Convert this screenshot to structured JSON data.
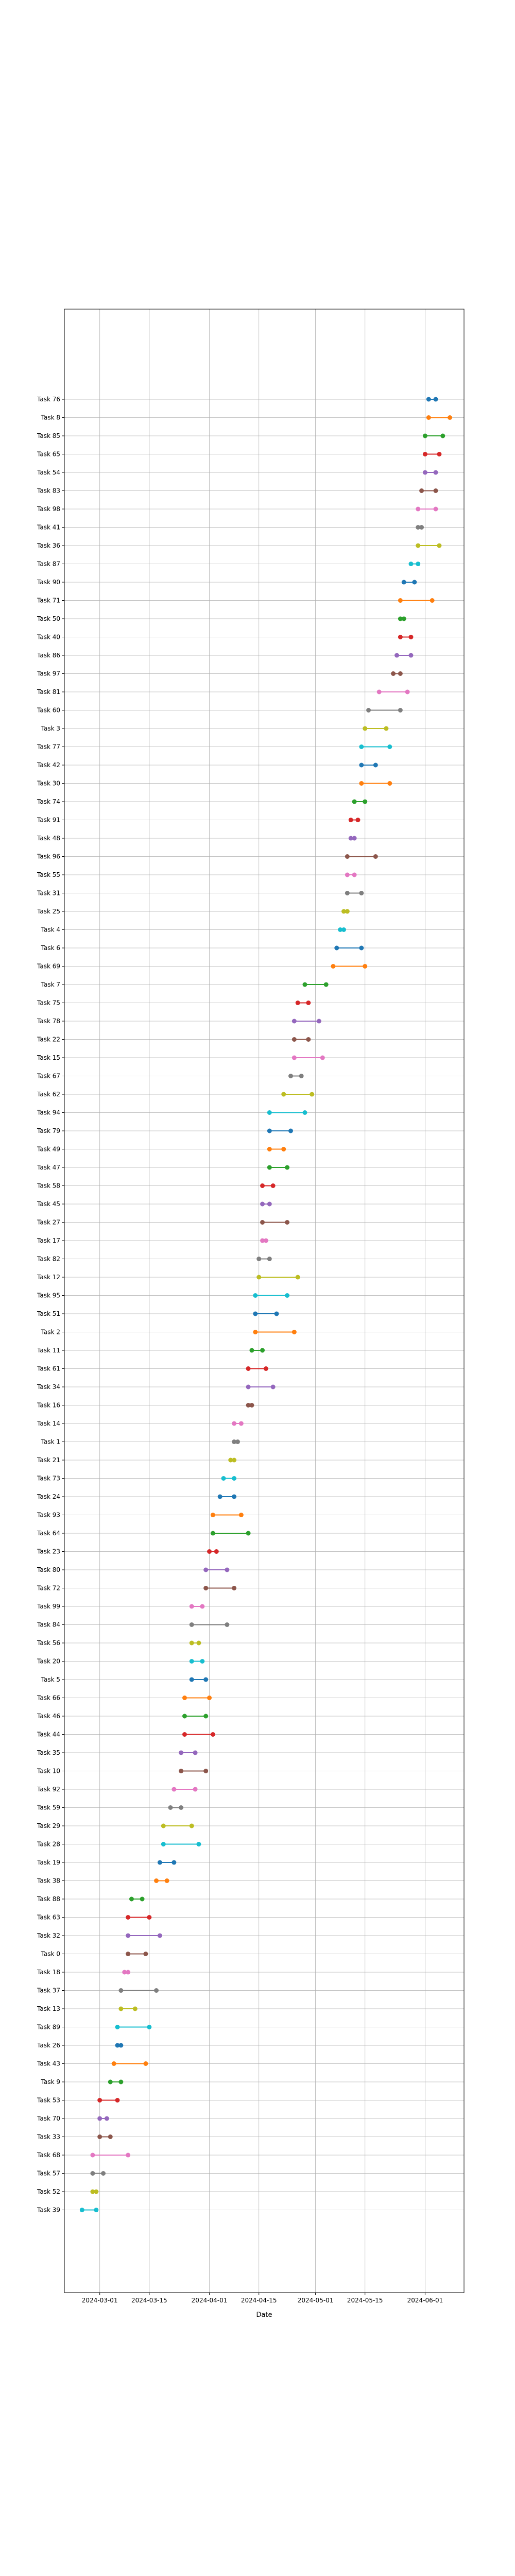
{
  "chart_data": {
    "type": "dumbbell",
    "title": "",
    "xlabel": "Date",
    "ylabel": "",
    "grid": true,
    "legend": "none",
    "xlim": [
      "2024-02-20",
      "2024-06-12"
    ],
    "x_ticks": [
      "2024-03-01",
      "2024-03-15",
      "2024-04-01",
      "2024-04-15",
      "2024-05-01",
      "2024-05-15",
      "2024-06-01"
    ],
    "colors": [
      "#1f77b4",
      "#ff7f0e",
      "#2ca02c",
      "#d62728",
      "#9467bd",
      "#8c564b",
      "#e377c2",
      "#7f7f7f",
      "#bcbd22",
      "#17becf"
    ],
    "tasks": [
      {
        "label": "Task 76",
        "start": "2024-06-02",
        "end": "2024-06-04"
      },
      {
        "label": "Task 8",
        "start": "2024-06-02",
        "end": "2024-06-08"
      },
      {
        "label": "Task 85",
        "start": "2024-06-01",
        "end": "2024-06-06"
      },
      {
        "label": "Task 65",
        "start": "2024-06-01",
        "end": "2024-06-05"
      },
      {
        "label": "Task 54",
        "start": "2024-06-01",
        "end": "2024-06-04"
      },
      {
        "label": "Task 83",
        "start": "2024-05-31",
        "end": "2024-06-04"
      },
      {
        "label": "Task 98",
        "start": "2024-05-30",
        "end": "2024-06-04"
      },
      {
        "label": "Task 41",
        "start": "2024-05-30",
        "end": "2024-05-31"
      },
      {
        "label": "Task 36",
        "start": "2024-05-30",
        "end": "2024-06-05"
      },
      {
        "label": "Task 87",
        "start": "2024-05-28",
        "end": "2024-05-30"
      },
      {
        "label": "Task 90",
        "start": "2024-05-26",
        "end": "2024-05-29"
      },
      {
        "label": "Task 71",
        "start": "2024-05-25",
        "end": "2024-06-03"
      },
      {
        "label": "Task 50",
        "start": "2024-05-25",
        "end": "2024-05-26"
      },
      {
        "label": "Task 40",
        "start": "2024-05-25",
        "end": "2024-05-28"
      },
      {
        "label": "Task 86",
        "start": "2024-05-24",
        "end": "2024-05-28"
      },
      {
        "label": "Task 97",
        "start": "2024-05-23",
        "end": "2024-05-25"
      },
      {
        "label": "Task 81",
        "start": "2024-05-19",
        "end": "2024-05-27"
      },
      {
        "label": "Task 60",
        "start": "2024-05-16",
        "end": "2024-05-25"
      },
      {
        "label": "Task 3",
        "start": "2024-05-15",
        "end": "2024-05-21"
      },
      {
        "label": "Task 77",
        "start": "2024-05-14",
        "end": "2024-05-22"
      },
      {
        "label": "Task 42",
        "start": "2024-05-14",
        "end": "2024-05-18"
      },
      {
        "label": "Task 30",
        "start": "2024-05-14",
        "end": "2024-05-22"
      },
      {
        "label": "Task 74",
        "start": "2024-05-12",
        "end": "2024-05-15"
      },
      {
        "label": "Task 91",
        "start": "2024-05-11",
        "end": "2024-05-13"
      },
      {
        "label": "Task 48",
        "start": "2024-05-11",
        "end": "2024-05-12"
      },
      {
        "label": "Task 96",
        "start": "2024-05-10",
        "end": "2024-05-18"
      },
      {
        "label": "Task 55",
        "start": "2024-05-10",
        "end": "2024-05-12"
      },
      {
        "label": "Task 31",
        "start": "2024-05-10",
        "end": "2024-05-14"
      },
      {
        "label": "Task 25",
        "start": "2024-05-09",
        "end": "2024-05-10"
      },
      {
        "label": "Task 4",
        "start": "2024-05-08",
        "end": "2024-05-09"
      },
      {
        "label": "Task 6",
        "start": "2024-05-07",
        "end": "2024-05-14"
      },
      {
        "label": "Task 69",
        "start": "2024-05-06",
        "end": "2024-05-15"
      },
      {
        "label": "Task 7",
        "start": "2024-04-28",
        "end": "2024-05-04"
      },
      {
        "label": "Task 75",
        "start": "2024-04-26",
        "end": "2024-04-29"
      },
      {
        "label": "Task 78",
        "start": "2024-04-25",
        "end": "2024-05-02"
      },
      {
        "label": "Task 22",
        "start": "2024-04-25",
        "end": "2024-04-29"
      },
      {
        "label": "Task 15",
        "start": "2024-04-25",
        "end": "2024-05-03"
      },
      {
        "label": "Task 67",
        "start": "2024-04-24",
        "end": "2024-04-27"
      },
      {
        "label": "Task 62",
        "start": "2024-04-22",
        "end": "2024-04-30"
      },
      {
        "label": "Task 94",
        "start": "2024-04-18",
        "end": "2024-04-28"
      },
      {
        "label": "Task 79",
        "start": "2024-04-18",
        "end": "2024-04-24"
      },
      {
        "label": "Task 49",
        "start": "2024-04-18",
        "end": "2024-04-22"
      },
      {
        "label": "Task 47",
        "start": "2024-04-18",
        "end": "2024-04-23"
      },
      {
        "label": "Task 58",
        "start": "2024-04-16",
        "end": "2024-04-19"
      },
      {
        "label": "Task 45",
        "start": "2024-04-16",
        "end": "2024-04-18"
      },
      {
        "label": "Task 27",
        "start": "2024-04-16",
        "end": "2024-04-23"
      },
      {
        "label": "Task 17",
        "start": "2024-04-16",
        "end": "2024-04-17"
      },
      {
        "label": "Task 82",
        "start": "2024-04-15",
        "end": "2024-04-18"
      },
      {
        "label": "Task 12",
        "start": "2024-04-15",
        "end": "2024-04-26"
      },
      {
        "label": "Task 95",
        "start": "2024-04-14",
        "end": "2024-04-23"
      },
      {
        "label": "Task 51",
        "start": "2024-04-14",
        "end": "2024-04-20"
      },
      {
        "label": "Task 2",
        "start": "2024-04-14",
        "end": "2024-04-25"
      },
      {
        "label": "Task 11",
        "start": "2024-04-13",
        "end": "2024-04-16"
      },
      {
        "label": "Task 61",
        "start": "2024-04-12",
        "end": "2024-04-17"
      },
      {
        "label": "Task 34",
        "start": "2024-04-12",
        "end": "2024-04-19"
      },
      {
        "label": "Task 16",
        "start": "2024-04-12",
        "end": "2024-04-13"
      },
      {
        "label": "Task 14",
        "start": "2024-04-08",
        "end": "2024-04-10"
      },
      {
        "label": "Task 1",
        "start": "2024-04-08",
        "end": "2024-04-09"
      },
      {
        "label": "Task 21",
        "start": "2024-04-07",
        "end": "2024-04-08"
      },
      {
        "label": "Task 73",
        "start": "2024-04-05",
        "end": "2024-04-08"
      },
      {
        "label": "Task 24",
        "start": "2024-04-04",
        "end": "2024-04-08"
      },
      {
        "label": "Task 93",
        "start": "2024-04-02",
        "end": "2024-04-10"
      },
      {
        "label": "Task 64",
        "start": "2024-04-02",
        "end": "2024-04-12"
      },
      {
        "label": "Task 23",
        "start": "2024-04-01",
        "end": "2024-04-03"
      },
      {
        "label": "Task 80",
        "start": "2024-03-31",
        "end": "2024-04-06"
      },
      {
        "label": "Task 72",
        "start": "2024-03-31",
        "end": "2024-04-08"
      },
      {
        "label": "Task 99",
        "start": "2024-03-27",
        "end": "2024-03-30"
      },
      {
        "label": "Task 84",
        "start": "2024-03-27",
        "end": "2024-04-06"
      },
      {
        "label": "Task 56",
        "start": "2024-03-27",
        "end": "2024-03-29"
      },
      {
        "label": "Task 20",
        "start": "2024-03-27",
        "end": "2024-03-30"
      },
      {
        "label": "Task 5",
        "start": "2024-03-27",
        "end": "2024-03-31"
      },
      {
        "label": "Task 66",
        "start": "2024-03-25",
        "end": "2024-04-01"
      },
      {
        "label": "Task 46",
        "start": "2024-03-25",
        "end": "2024-03-31"
      },
      {
        "label": "Task 44",
        "start": "2024-03-25",
        "end": "2024-04-02"
      },
      {
        "label": "Task 35",
        "start": "2024-03-24",
        "end": "2024-03-28"
      },
      {
        "label": "Task 10",
        "start": "2024-03-24",
        "end": "2024-03-31"
      },
      {
        "label": "Task 92",
        "start": "2024-03-22",
        "end": "2024-03-28"
      },
      {
        "label": "Task 59",
        "start": "2024-03-21",
        "end": "2024-03-24"
      },
      {
        "label": "Task 29",
        "start": "2024-03-19",
        "end": "2024-03-27"
      },
      {
        "label": "Task 28",
        "start": "2024-03-19",
        "end": "2024-03-29"
      },
      {
        "label": "Task 19",
        "start": "2024-03-18",
        "end": "2024-03-22"
      },
      {
        "label": "Task 38",
        "start": "2024-03-17",
        "end": "2024-03-20"
      },
      {
        "label": "Task 88",
        "start": "2024-03-10",
        "end": "2024-03-13"
      },
      {
        "label": "Task 63",
        "start": "2024-03-09",
        "end": "2024-03-15"
      },
      {
        "label": "Task 32",
        "start": "2024-03-09",
        "end": "2024-03-18"
      },
      {
        "label": "Task 0",
        "start": "2024-03-09",
        "end": "2024-03-14"
      },
      {
        "label": "Task 18",
        "start": "2024-03-08",
        "end": "2024-03-09"
      },
      {
        "label": "Task 37",
        "start": "2024-03-07",
        "end": "2024-03-17"
      },
      {
        "label": "Task 13",
        "start": "2024-03-07",
        "end": "2024-03-11"
      },
      {
        "label": "Task 89",
        "start": "2024-03-06",
        "end": "2024-03-15"
      },
      {
        "label": "Task 26",
        "start": "2024-03-06",
        "end": "2024-03-07"
      },
      {
        "label": "Task 43",
        "start": "2024-03-05",
        "end": "2024-03-14"
      },
      {
        "label": "Task 9",
        "start": "2024-03-04",
        "end": "2024-03-07"
      },
      {
        "label": "Task 53",
        "start": "2024-03-01",
        "end": "2024-03-06"
      },
      {
        "label": "Task 70",
        "start": "2024-03-01",
        "end": "2024-03-03"
      },
      {
        "label": "Task 33",
        "start": "2024-03-01",
        "end": "2024-03-04"
      },
      {
        "label": "Task 68",
        "start": "2024-02-28",
        "end": "2024-03-09"
      },
      {
        "label": "Task 57",
        "start": "2024-02-28",
        "end": "2024-03-02"
      },
      {
        "label": "Task 52",
        "start": "2024-02-28",
        "end": "2024-02-29"
      },
      {
        "label": "Task 39",
        "start": "2024-02-25",
        "end": "2024-02-29"
      }
    ]
  }
}
